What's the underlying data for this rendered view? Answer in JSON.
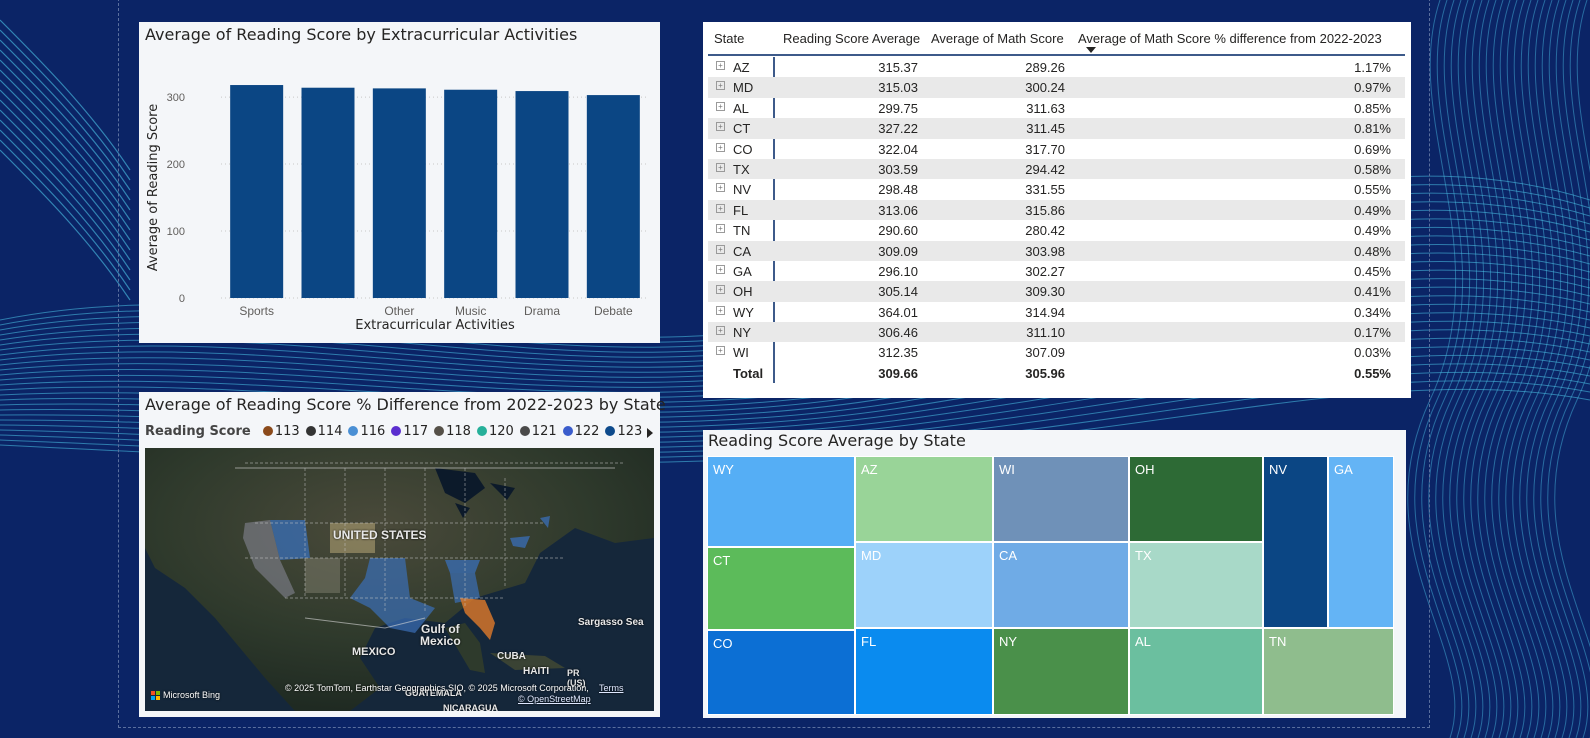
{
  "colors": {
    "background": "#0b2466",
    "wave": "#4cc4e8",
    "bar": "#0b4684"
  },
  "bar_chart": {
    "title": "Average of Reading Score by Extracurricular Activities",
    "chart_data": {
      "type": "bar",
      "categories": [
        "Sports",
        "",
        "Other",
        "Music",
        "Drama",
        "Debate"
      ],
      "values": [
        318,
        314,
        313,
        311,
        309,
        303
      ],
      "title": "Average of Reading Score by Extracurricular Activities",
      "xlabel": "Extracurricular Activities",
      "ylabel": "Average of Reading Score",
      "ylim": [
        0,
        330
      ],
      "yticks": [
        "0",
        "100",
        "200",
        "300"
      ],
      "grid": true
    }
  },
  "table": {
    "headers": {
      "state": "State",
      "reading": "Reading Score Average",
      "math": "Average of Math Score",
      "diff": "Average of Math Score % difference from 2022-2023"
    },
    "expand_icon": "⊞",
    "rows": [
      {
        "state": "AZ",
        "reading": "315.37",
        "math": "289.26",
        "diff": "1.17%"
      },
      {
        "state": "MD",
        "reading": "315.03",
        "math": "300.24",
        "diff": "0.97%"
      },
      {
        "state": "AL",
        "reading": "299.75",
        "math": "311.63",
        "diff": "0.85%"
      },
      {
        "state": "CT",
        "reading": "327.22",
        "math": "311.45",
        "diff": "0.81%"
      },
      {
        "state": "CO",
        "reading": "322.04",
        "math": "317.70",
        "diff": "0.69%"
      },
      {
        "state": "TX",
        "reading": "303.59",
        "math": "294.42",
        "diff": "0.58%"
      },
      {
        "state": "NV",
        "reading": "298.48",
        "math": "331.55",
        "diff": "0.55%"
      },
      {
        "state": "FL",
        "reading": "313.06",
        "math": "315.86",
        "diff": "0.49%"
      },
      {
        "state": "TN",
        "reading": "290.60",
        "math": "280.42",
        "diff": "0.49%"
      },
      {
        "state": "CA",
        "reading": "309.09",
        "math": "303.98",
        "diff": "0.48%"
      },
      {
        "state": "GA",
        "reading": "296.10",
        "math": "302.27",
        "diff": "0.45%"
      },
      {
        "state": "OH",
        "reading": "305.14",
        "math": "309.30",
        "diff": "0.41%"
      },
      {
        "state": "WY",
        "reading": "364.01",
        "math": "314.94",
        "diff": "0.34%"
      },
      {
        "state": "NY",
        "reading": "306.46",
        "math": "311.10",
        "diff": "0.17%"
      },
      {
        "state": "WI",
        "reading": "312.35",
        "math": "307.09",
        "diff": "0.03%"
      }
    ],
    "total": {
      "label": "Total",
      "reading": "309.66",
      "math": "305.96",
      "diff": "0.55%"
    }
  },
  "map": {
    "title": "Average of Reading Score % Difference from 2022-2023 by State",
    "legend_title": "Reading Score",
    "legend": [
      {
        "label": "113",
        "color": "#8b4a1b"
      },
      {
        "label": "114",
        "color": "#333333"
      },
      {
        "label": "116",
        "color": "#4a8fd4"
      },
      {
        "label": "117",
        "color": "#5b2ecf"
      },
      {
        "label": "118",
        "color": "#555048"
      },
      {
        "label": "120",
        "color": "#26b09a"
      },
      {
        "label": "121",
        "color": "#4a4a4a"
      },
      {
        "label": "122",
        "color": "#3a5ccc"
      },
      {
        "label": "123",
        "color": "#0d4a8c"
      }
    ],
    "labels": {
      "us": "UNITED STATES",
      "mexico": "MEXICO",
      "gulf": "Gulf of\nMexico",
      "cuba": "CUBA",
      "haiti": "HAITI",
      "pr": "PR\n(US)",
      "sargasso": "Sargasso Sea",
      "guatemala": "GUATEMALA",
      "nicaragua": "NICARAGUA"
    },
    "bing": "Microsoft Bing",
    "copyright": "© 2025 TomTom, Earthstar Geographics SIO, © 2025 Microsoft Corporation,",
    "terms": "Terms",
    "osm": "© OpenStreetMap"
  },
  "treemap": {
    "title": "Reading Score Average by State",
    "tiles": [
      {
        "state": "WY",
        "color": "#55aef5"
      },
      {
        "state": "CT",
        "color": "#5cbb5a"
      },
      {
        "state": "CO",
        "color": "#0c6fd4"
      },
      {
        "state": "AZ",
        "color": "#99d498"
      },
      {
        "state": "MD",
        "color": "#9dd2fa"
      },
      {
        "state": "FL",
        "color": "#0a8bef"
      },
      {
        "state": "WI",
        "color": "#6f91b8"
      },
      {
        "state": "CA",
        "color": "#6fabe6"
      },
      {
        "state": "NY",
        "color": "#4a904a"
      },
      {
        "state": "OH",
        "color": "#2d6a35"
      },
      {
        "state": "TX",
        "color": "#a8d9c8"
      },
      {
        "state": "AL",
        "color": "#6bbf9f"
      },
      {
        "state": "NV",
        "color": "#0b4684"
      },
      {
        "state": "GA",
        "color": "#64b4f5"
      },
      {
        "state": "TN",
        "color": "#8fbd8d"
      }
    ]
  }
}
